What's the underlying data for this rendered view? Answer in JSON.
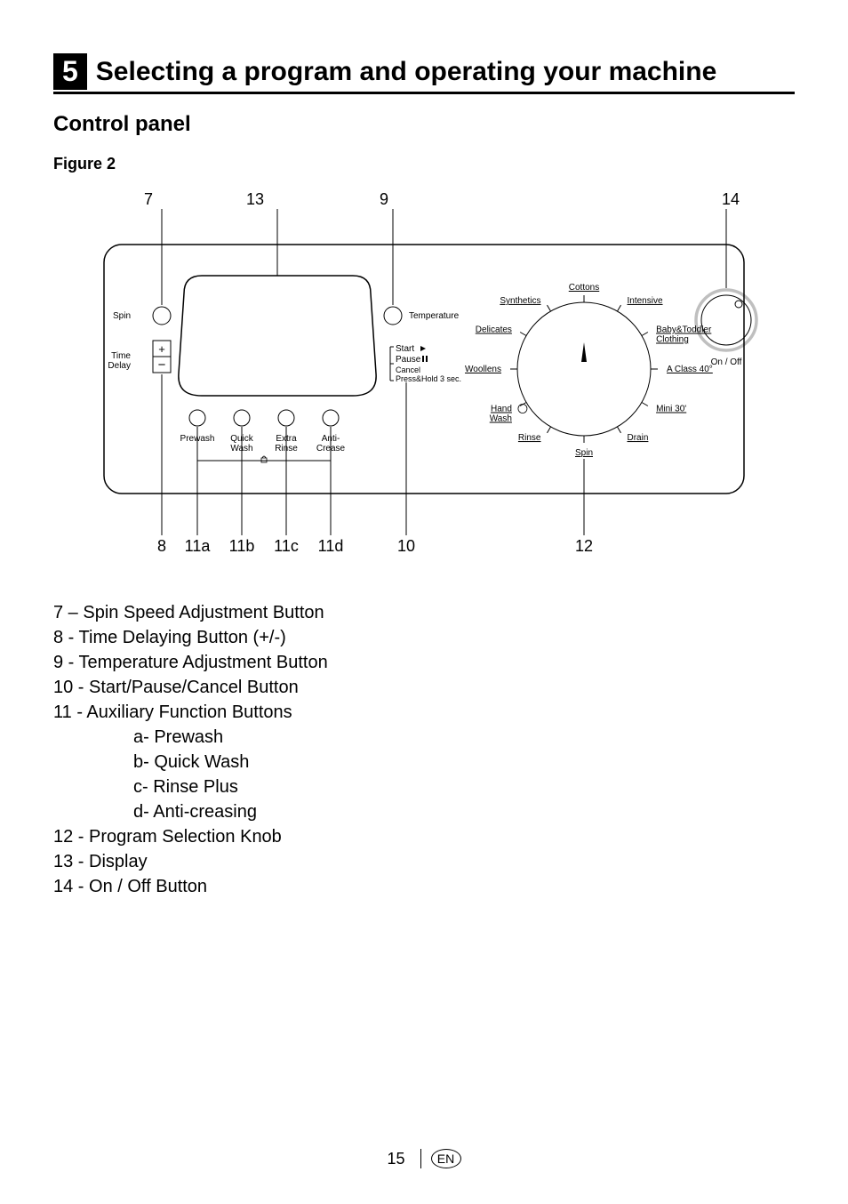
{
  "section": {
    "number": "5",
    "title": "Selecting a program and operating your machine"
  },
  "subtitle": "Control panel",
  "figure_label": "Figure 2",
  "diagram": {
    "callouts_top": [
      "7",
      "13",
      "9",
      "14"
    ],
    "callouts_bottom": [
      "8",
      "11a",
      "11b",
      "11c",
      "11d",
      "10",
      "12"
    ],
    "spin_label": "Spin",
    "time_delay_label": "Time\nDelay",
    "temperature_label": "Temperature",
    "start_label": "Start",
    "pause_label": "Pause",
    "cancel_label": "Cancel\nPress&Hold 3 sec.",
    "aux_buttons": [
      "Prewash",
      "Quick\nWash",
      "Extra\nRinse",
      "Anti-\nCrease"
    ],
    "programs_left": [
      "Synthetics",
      "Delicates",
      "Woollens",
      "Hand\nWash",
      "Rinse"
    ],
    "programs_top": "Cottons",
    "programs_bottom": "Spin",
    "programs_right": [
      "Intensive",
      "Baby&Toddler\nClothing",
      "A Class 40°",
      "Mini 30'",
      "Drain"
    ],
    "on_off_label": "On / Off"
  },
  "legend": {
    "lines": [
      "7 – Spin Speed Adjustment Button",
      "8 - Time Delaying Button (+/-)",
      "9 - Temperature Adjustment Button",
      "10 - Start/Pause/Cancel Button",
      "11 - Auxiliary Function Buttons"
    ],
    "sublines": [
      "a- Prewash",
      "b- Quick Wash",
      "c- Rinse Plus",
      "d- Anti-creasing"
    ],
    "lines2": [
      "12 - Program Selection Knob",
      "13 - Display",
      "14 - On / Off Button"
    ]
  },
  "footer": {
    "page": "15",
    "lang": "EN"
  },
  "style": {
    "stroke": "#000000",
    "stroke_thin": 1,
    "stroke_med": 1.5,
    "bg": "#ffffff",
    "font_callout": 18,
    "font_panel": 10,
    "font_panel_sm": 9
  }
}
